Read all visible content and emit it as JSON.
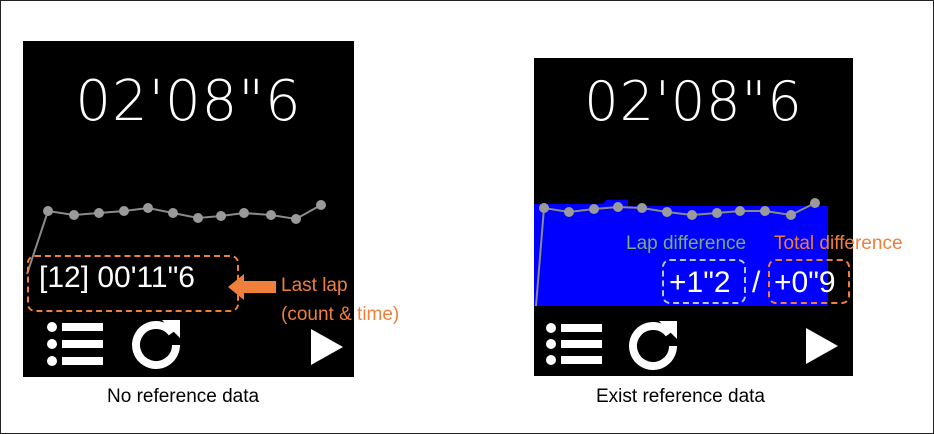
{
  "stopwatch": {
    "total_time": "02'08\"6"
  },
  "left_screen": {
    "last_lap_text": "[12] 00'11\"6",
    "caption": "No reference data"
  },
  "right_screen": {
    "lap_difference": "+1\"2",
    "separator": "/",
    "total_difference": "+0\"9",
    "caption": "Exist reference data"
  },
  "annotations": {
    "last_lap_line1": "Last lap",
    "last_lap_line2": "(count & time)",
    "lap_difference_label": "Lap difference",
    "total_difference_label": "Total difference"
  },
  "controls": {
    "list_icon": "list-icon",
    "reset_icon": "refresh-icon",
    "play_icon": "play-icon"
  },
  "colors": {
    "annotation_orange": "#f07f3c",
    "annotation_green": "#7aab7a",
    "fill_blue": "#0000ff",
    "dot_gray": "#9a9a9a"
  }
}
